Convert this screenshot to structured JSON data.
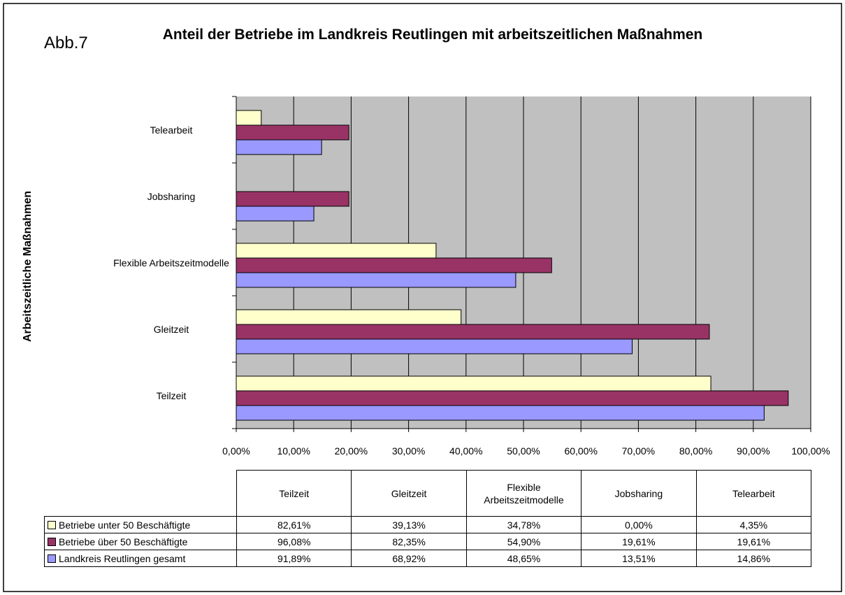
{
  "chart_data": {
    "type": "bar",
    "orientation": "horizontal",
    "annotation": "Abb.7",
    "title": "Anteil der Betriebe im Landkreis Reutlingen mit arbeitszeitlichen Maßnahmen",
    "y_label": "Arbeitszeitliche Maßnahmen",
    "categories": [
      "Teilzeit",
      "Gleitzeit",
      "Flexible Arbeitszeitmodelle",
      "Jobsharing",
      "Telearbeit"
    ],
    "series": [
      {
        "name": "Betriebe unter 50 Beschäftigte",
        "color": "#ffffcc",
        "values": [
          82.61,
          39.13,
          34.78,
          0,
          4.35
        ],
        "value_labels": [
          "82,61%",
          "39,13%",
          "34,78%",
          "0,00%",
          "4,35%"
        ]
      },
      {
        "name": "Betriebe über 50 Beschäftigte",
        "color": "#993366",
        "values": [
          96.08,
          82.35,
          54.9,
          19.61,
          19.61
        ],
        "value_labels": [
          "96,08%",
          "82,35%",
          "54,90%",
          "19,61%",
          "19,61%"
        ]
      },
      {
        "name": "Landkreis Reutlingen gesamt",
        "color": "#9999ff",
        "values": [
          91.89,
          68.92,
          48.65,
          13.51,
          14.86
        ],
        "value_labels": [
          "91,89%",
          "68,92%",
          "48,65%",
          "13,51%",
          "14,86%"
        ]
      }
    ],
    "xlim": [
      0,
      100
    ],
    "xticks": [
      {
        "value": 0,
        "label": "0,00%"
      },
      {
        "value": 10,
        "label": "10,00%"
      },
      {
        "value": 20,
        "label": "20,00%"
      },
      {
        "value": 30,
        "label": "30,00%"
      },
      {
        "value": 40,
        "label": "40,00%"
      },
      {
        "value": 50,
        "label": "50,00%"
      },
      {
        "value": 60,
        "label": "60,00%"
      },
      {
        "value": 70,
        "label": "70,00%"
      },
      {
        "value": 80,
        "label": "80,00%"
      },
      {
        "value": 90,
        "label": "90,00%"
      },
      {
        "value": 100,
        "label": "100,00%"
      }
    ],
    "grid": true,
    "data_table": true
  }
}
